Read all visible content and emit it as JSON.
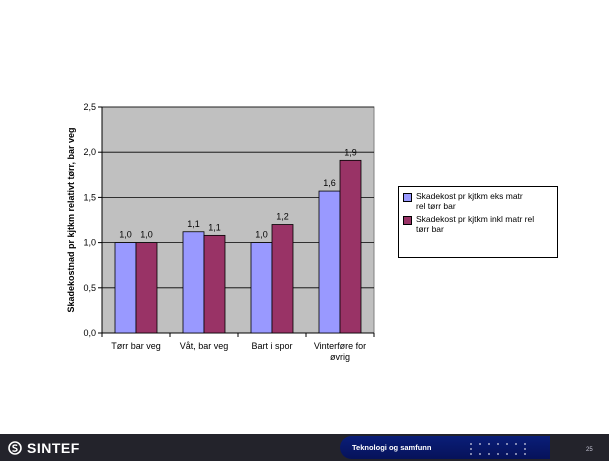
{
  "chart_data": {
    "type": "bar",
    "categories": [
      "Tørr bar veg",
      "Våt, bar veg",
      "Bart i spor",
      "Vinterføre for øvrig"
    ],
    "category_lines": [
      [
        "Tørr bar veg"
      ],
      [
        "Våt, bar veg"
      ],
      [
        "Bart i spor"
      ],
      [
        "Vinterføre for",
        "øvrig"
      ]
    ],
    "series": [
      {
        "name": "Skadekost pr kjtkm eks matr rel tørr bar",
        "name_lines": [
          "Skadekost pr kjtkm eks matr",
          "rel tørr bar"
        ],
        "values": [
          1.0,
          1.12,
          1.0,
          1.57
        ],
        "labels": [
          "1,0",
          "1,1",
          "1,0",
          "1,6"
        ],
        "color": "#9999ff"
      },
      {
        "name": "Skadekost pr kjtkm inkl matr rel tørr bar",
        "name_lines": [
          "Skadekost pr kjtkm inkl matr rel",
          "tørr bar"
        ],
        "values": [
          1.0,
          1.08,
          1.2,
          1.91
        ],
        "labels": [
          "1,0",
          "1,1",
          "1,2",
          "1,9"
        ],
        "color": "#993366"
      }
    ],
    "ylabel": "Skadekostnad pr kjtkm relativt tørr, bar veg",
    "xlabel": "",
    "ylim": [
      0,
      2.5
    ],
    "yticks": [
      0,
      0.5,
      1.0,
      1.5,
      2.0,
      2.5
    ],
    "ytick_labels": [
      "0,0",
      "0,5",
      "1,0",
      "1,5",
      "2,0",
      "2,5"
    ],
    "grid": true,
    "plot_background": "#c0c0c0",
    "legend_position": "right"
  },
  "footer": {
    "logo_text": "SINTEF",
    "center_text": "Teknologi og samfunn",
    "page_number": "25",
    "band_color": "#23232b",
    "accent_color": "#0a1e78"
  }
}
